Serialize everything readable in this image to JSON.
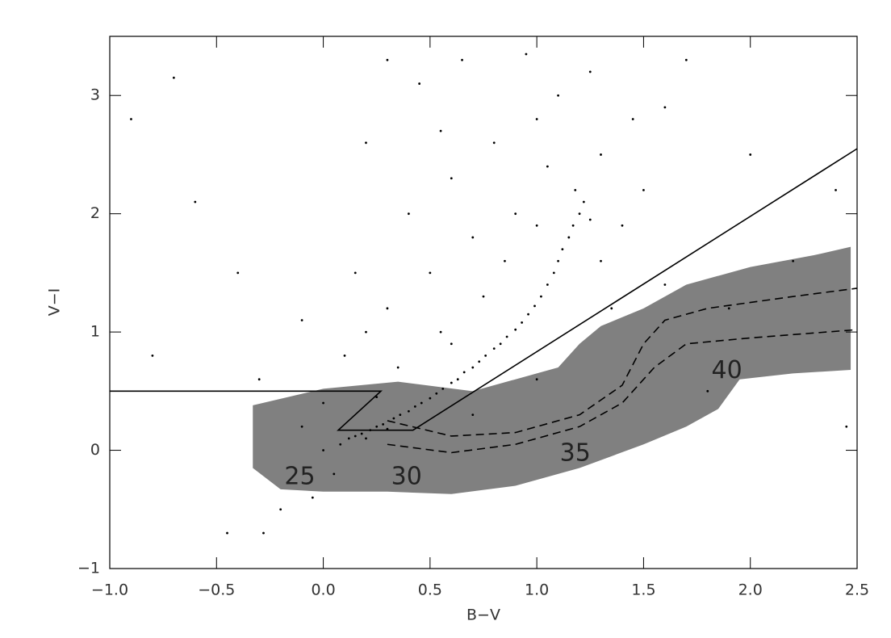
{
  "chart_data": {
    "type": "scatter",
    "xlabel": "B−V",
    "ylabel": "V−I",
    "xlim": [
      -1,
      2.5
    ],
    "ylim": [
      -1,
      3.5
    ],
    "xticks": [
      {
        "value": -1,
        "label": "−1.0"
      },
      {
        "value": -0.5,
        "label": "−0.5"
      },
      {
        "value": 0,
        "label": "0.0"
      },
      0.5,
      {
        "value": 1,
        "label": "1.0"
      },
      1.5,
      {
        "value": 2,
        "label": "2.0"
      },
      2.5
    ],
    "yticks": [
      {
        "value": -1,
        "label": "−1"
      },
      0,
      1,
      2,
      3
    ],
    "region": {
      "color": "#808080",
      "x": [
        -0.33,
        0.0,
        0.35,
        0.7,
        1.1,
        1.2,
        1.3,
        1.5,
        1.7,
        2.0,
        2.3,
        2.47,
        2.47,
        2.2,
        1.95,
        1.85,
        1.7,
        1.5,
        1.2,
        0.9,
        0.6,
        0.3,
        0.0,
        -0.2,
        -0.33
      ],
      "y": [
        0.38,
        0.52,
        0.58,
        0.5,
        0.7,
        0.9,
        1.05,
        1.2,
        1.4,
        1.55,
        1.65,
        1.72,
        0.68,
        0.65,
        0.6,
        0.35,
        0.2,
        0.05,
        -0.15,
        -0.3,
        -0.37,
        -0.35,
        -0.35,
        -0.33,
        -0.15
      ]
    },
    "lines": [
      {
        "color": "#000000",
        "style": "solid",
        "x": [
          -1,
          0.27,
          0.07,
          0.42,
          2.5
        ],
        "y": [
          0.5,
          0.5,
          0.17,
          0.17,
          2.55
        ]
      },
      {
        "color": "#000000",
        "style": "dashed",
        "x": [
          0.3,
          0.6,
          0.9,
          1.2,
          1.4,
          1.55,
          1.7,
          2.0,
          2.5
        ],
        "y": [
          0.05,
          -0.02,
          0.05,
          0.2,
          0.4,
          0.7,
          0.9,
          0.95,
          1.02
        ]
      },
      {
        "color": "#000000",
        "style": "dashed",
        "x": [
          0.3,
          0.6,
          0.9,
          1.2,
          1.4,
          1.5,
          1.6,
          1.8,
          2.2,
          2.5
        ],
        "y": [
          0.25,
          0.12,
          0.15,
          0.3,
          0.55,
          0.9,
          1.1,
          1.2,
          1.3,
          1.37
        ]
      }
    ],
    "points": {
      "color": "#000000",
      "x": [
        0.12,
        0.15,
        0.18,
        0.2,
        0.22,
        0.25,
        0.28,
        0.3,
        0.33,
        0.36,
        0.4,
        0.43,
        0.46,
        0.5,
        0.53,
        0.56,
        0.6,
        0.63,
        0.66,
        0.7,
        0.73,
        0.76,
        0.8,
        0.83,
        0.86,
        0.9,
        0.93,
        0.96,
        0.99,
        1.02,
        1.05,
        1.08,
        1.1,
        1.12,
        1.15,
        1.17,
        1.2,
        1.22,
        1.18,
        1.25,
        0.3,
        0.5,
        0.4,
        0.2,
        0.6,
        0.7,
        0.8,
        0.9,
        1.0,
        1.1,
        1.3,
        1.4,
        1.5,
        1.6,
        1.7,
        0.1,
        0.0,
        -0.1,
        0.05,
        -0.05,
        -0.2,
        -0.28,
        0.2,
        0.45,
        0.65,
        0.95,
        -0.6,
        -0.8,
        -0.9,
        -0.45,
        1.35,
        1.6,
        1.9,
        2.2,
        2.4,
        2.45,
        1.8,
        1.0,
        0.7,
        0.55,
        0.35,
        0.15,
        -0.1,
        -0.3,
        0.25,
        0.6,
        0.75,
        0.85,
        1.0,
        1.3,
        1.05,
        0.55,
        1.25,
        0.3,
        -0.4,
        1.45,
        2.0,
        -0.7,
        0.08,
        0.0
      ],
      "y": [
        0.1,
        0.12,
        0.14,
        0.1,
        0.17,
        0.2,
        0.22,
        0.18,
        0.27,
        0.3,
        0.33,
        0.37,
        0.4,
        0.44,
        0.48,
        0.52,
        0.57,
        0.6,
        0.66,
        0.7,
        0.75,
        0.8,
        0.86,
        0.9,
        0.96,
        1.02,
        1.08,
        1.15,
        1.22,
        1.3,
        1.4,
        1.5,
        1.6,
        1.7,
        1.8,
        1.9,
        2.0,
        2.1,
        2.2,
        1.95,
        1.2,
        1.5,
        2.0,
        1.0,
        2.3,
        1.8,
        2.6,
        2.0,
        2.8,
        3.0,
        2.5,
        1.9,
        2.2,
        2.9,
        3.3,
        0.8,
        0.4,
        0.2,
        -0.2,
        -0.4,
        -0.5,
        -0.7,
        2.6,
        3.1,
        3.3,
        3.35,
        2.1,
        0.8,
        2.8,
        -0.7,
        1.2,
        1.4,
        1.2,
        1.6,
        2.2,
        0.2,
        0.5,
        0.6,
        0.3,
        1.0,
        0.7,
        1.5,
        1.1,
        0.6,
        0.45,
        0.9,
        1.3,
        1.6,
        1.9,
        1.6,
        2.4,
        2.7,
        3.2,
        3.3,
        1.5,
        2.8,
        2.5,
        3.15,
        0.05,
        0.0
      ]
    },
    "annotations": [
      {
        "text": "25",
        "x": -0.11,
        "y": -0.23
      },
      {
        "text": "30",
        "x": 0.39,
        "y": -0.23
      },
      {
        "text": "35",
        "x": 1.18,
        "y": -0.03
      },
      {
        "text": "40",
        "x": 1.89,
        "y": 0.67
      }
    ]
  }
}
